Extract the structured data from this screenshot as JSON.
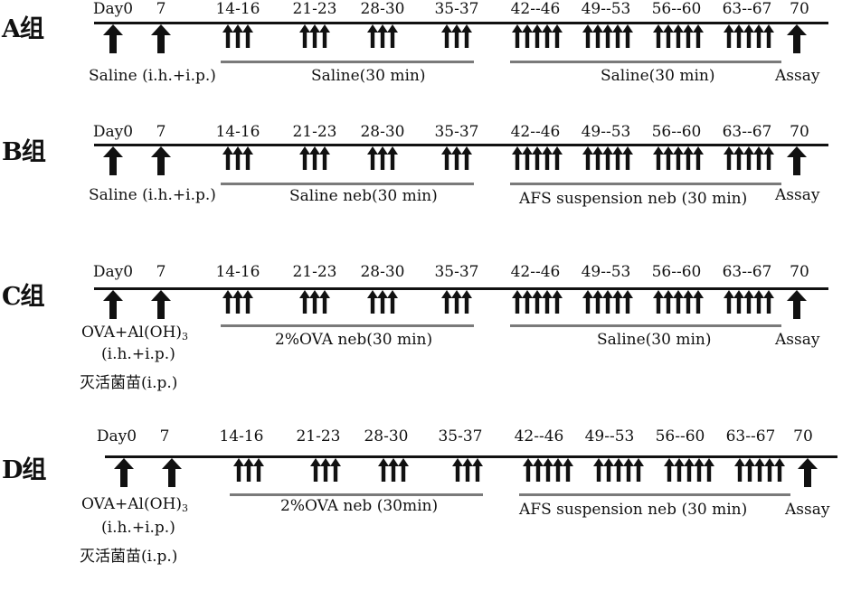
{
  "groups": [
    {
      "label": "A组",
      "ticks": [
        "Day0",
        "7",
        "14-16",
        "21-23",
        "28-30",
        "35-37",
        "42--46",
        "49--53",
        "56--60",
        "63--67",
        "70"
      ],
      "sensitization_label": "Saline (i.h.+i.p.)",
      "sensitization_line2": "",
      "sensitization_line3": "",
      "phase1_label": "Saline(30 min)",
      "phase2_label": "Saline(30 min)",
      "assay_label": "Assay"
    },
    {
      "label": "B组",
      "ticks": [
        "Day0",
        "7",
        "14-16",
        "21-23",
        "28-30",
        "35-37",
        "42--46",
        "49--53",
        "56--60",
        "63--67",
        "70"
      ],
      "sensitization_label": "Saline (i.h.+i.p.)",
      "sensitization_line2": "",
      "sensitization_line3": "",
      "phase1_label": "Saline neb(30 min)",
      "phase2_label": "AFS suspension neb (30 min)",
      "assay_label": "Assay"
    },
    {
      "label": "C组",
      "ticks": [
        "Day0",
        "7",
        "14-16",
        "21-23",
        "28-30",
        "35-37",
        "42--46",
        "49--53",
        "56--60",
        "63--67",
        "70"
      ],
      "sensitization_label": "OVA+Al(OH)",
      "sensitization_sub": "3",
      "sensitization_line2": "(i.h.+i.p.)",
      "sensitization_line3": "灭活菌苗(i.p.)",
      "phase1_label": "2%OVA neb(30 min)",
      "phase2_label": "Saline(30 min)",
      "assay_label": "Assay"
    },
    {
      "label": "D组",
      "ticks": [
        "Day0",
        "7",
        "14-16",
        "21-23",
        "28-30",
        "35-37",
        "42--46",
        "49--53",
        "56--60",
        "63--67",
        "70"
      ],
      "sensitization_label": "OVA+Al(OH)",
      "sensitization_sub": "3",
      "sensitization_line2": "(i.h.+i.p.)",
      "sensitization_line3": "灭活菌苗(i.p.)",
      "phase1_label": "2%OVA neb (30min)",
      "phase2_label": "AFS suspension neb (30 min)",
      "assay_label": "Assay"
    }
  ]
}
